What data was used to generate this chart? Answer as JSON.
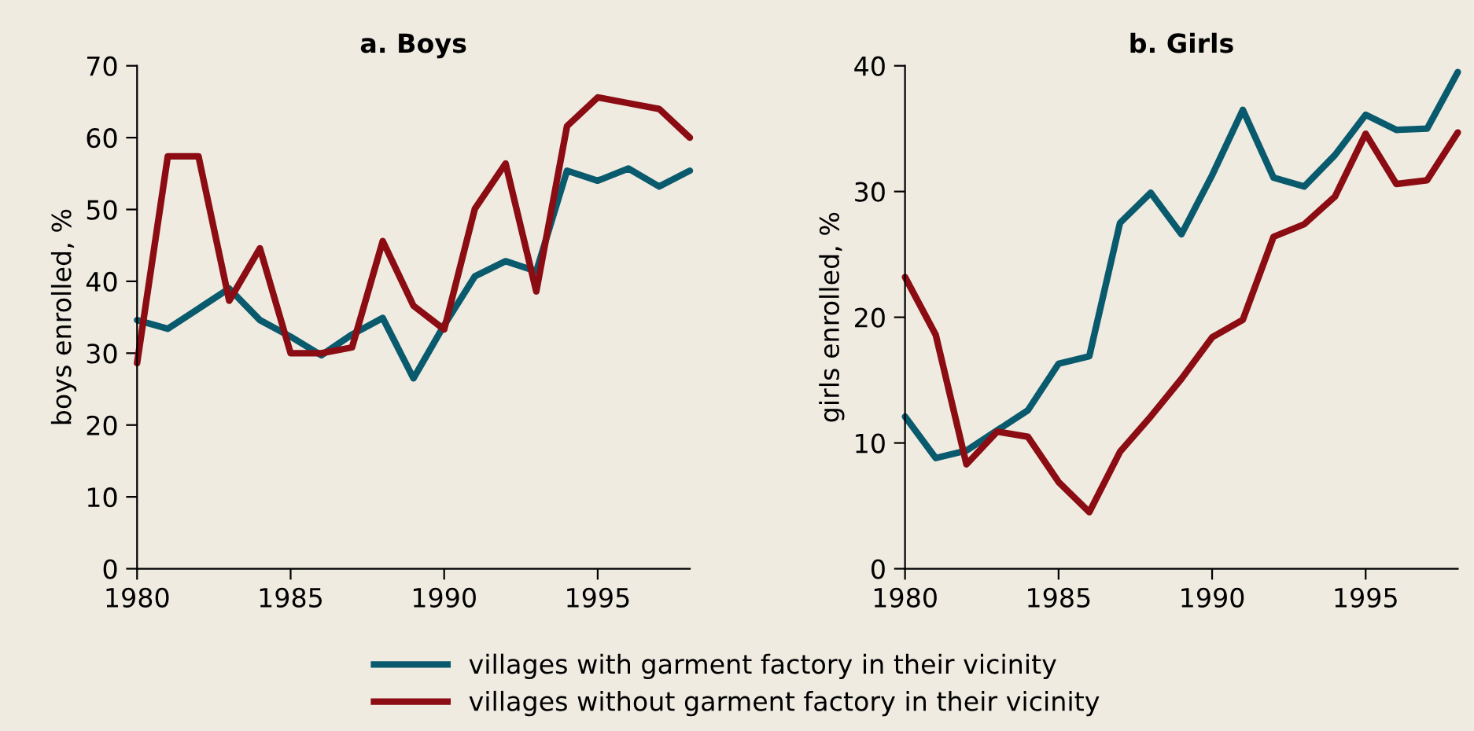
{
  "chart_data": [
    {
      "type": "line",
      "title": "a. Boys",
      "ylabel": "boys enrolled, %",
      "x": [
        1980,
        1981,
        1982,
        1983,
        1984,
        1985,
        1986,
        1987,
        1988,
        1989,
        1990,
        1991,
        1992,
        1993,
        1994,
        1995,
        1996,
        1997,
        1998
      ],
      "series": [
        {
          "name": "villages with garment factory in their vicinity",
          "color": "#0a5a6e",
          "values": [
            34.6,
            33.4,
            36.2,
            39,
            34.6,
            32.3,
            29.7,
            32.6,
            34.9,
            26.5,
            33.9,
            40.7,
            42.8,
            41.4,
            55.4,
            54,
            55.7,
            53.2,
            55.4
          ]
        },
        {
          "name": "villages without garment factory in their vicinity",
          "color": "#8b0d13",
          "values": [
            28.6,
            57.4,
            57.4,
            37.3,
            44.6,
            30,
            30,
            30.8,
            45.6,
            36.6,
            33.3,
            50.1,
            56.4,
            38.6,
            61.6,
            65.6,
            64.8,
            64,
            60
          ]
        }
      ],
      "xlim": [
        1980,
        1998
      ],
      "xticks": [
        1980,
        1985,
        1990,
        1995
      ],
      "ylim": [
        0,
        70
      ],
      "yticks": [
        0,
        10,
        20,
        30,
        40,
        50,
        60,
        70
      ],
      "legend": "bottom",
      "grid": false
    },
    {
      "type": "line",
      "title": "b. Girls",
      "ylabel": "girls enrolled, %",
      "x": [
        1980,
        1981,
        1982,
        1983,
        1984,
        1985,
        1986,
        1987,
        1988,
        1989,
        1990,
        1991,
        1992,
        1993,
        1994,
        1995,
        1996,
        1997,
        1998
      ],
      "series": [
        {
          "color": "#0a5a6e",
          "values": [
            12.1,
            8.8,
            9.4,
            11,
            12.6,
            16.3,
            16.9,
            27.5,
            29.9,
            26.6,
            31.3,
            36.5,
            31.1,
            30.4,
            32.9,
            36.1,
            34.9,
            35,
            39.5
          ]
        },
        {
          "color": "#8b0d13",
          "values": [
            23.2,
            18.6,
            8.3,
            10.9,
            10.5,
            6.9,
            4.5,
            9.3,
            12.1,
            15.1,
            18.4,
            19.8,
            26.4,
            27.4,
            29.6,
            34.6,
            30.6,
            30.9,
            34.7
          ]
        }
      ],
      "xlim": [
        1980,
        1998
      ],
      "xticks": [
        1980,
        1985,
        1990,
        1995
      ],
      "ylim": [
        0,
        40
      ],
      "yticks": [
        0,
        10,
        20,
        30,
        40
      ],
      "grid": false
    }
  ]
}
